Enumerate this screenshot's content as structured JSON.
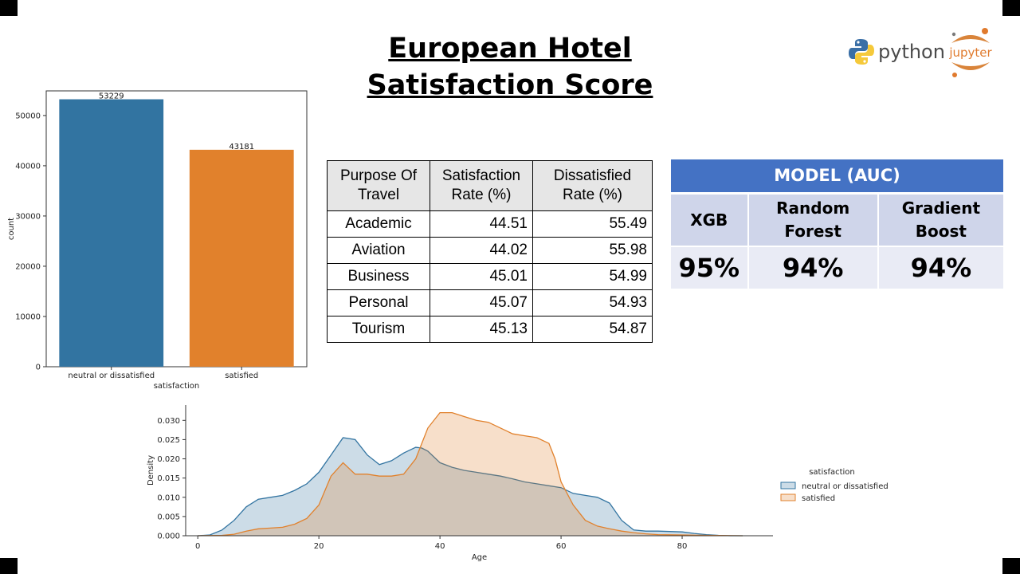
{
  "title": {
    "line1": "European Hotel",
    "line2": "Satisfaction Score"
  },
  "logos": {
    "python": "python",
    "jupyter": "jupyter"
  },
  "purpose_table": {
    "headers": [
      [
        "Purpose Of",
        "Travel"
      ],
      [
        "Satisfaction",
        "Rate (%)"
      ],
      [
        "Dissatisfied",
        "Rate (%)"
      ]
    ],
    "rows": [
      [
        "Academic",
        "44.51",
        "55.49"
      ],
      [
        "Aviation",
        "44.02",
        "55.98"
      ],
      [
        "Business",
        "45.01",
        "54.99"
      ],
      [
        "Personal",
        "45.07",
        "54.93"
      ],
      [
        "Tourism",
        "45.13",
        "54.87"
      ]
    ]
  },
  "model_table": {
    "title": "MODEL (AUC)",
    "models": [
      {
        "name": [
          "XGB"
        ],
        "auc": "95%"
      },
      {
        "name": [
          "Random",
          "Forest"
        ],
        "auc": "94%"
      },
      {
        "name": [
          "Gradient",
          "Boost"
        ],
        "auc": "94%"
      }
    ]
  },
  "chart_data": [
    {
      "type": "bar",
      "categories": [
        "neutral or dissatisfied",
        "satisfied"
      ],
      "values": [
        53229,
        43181
      ],
      "data_labels": [
        "53229",
        "43181"
      ],
      "colors": [
        "#3274a1",
        "#e1812c"
      ],
      "xlabel": "satisfaction",
      "ylabel": "count",
      "ylim": [
        0,
        54900
      ],
      "yticks": [
        0,
        10000,
        20000,
        30000,
        40000,
        50000
      ]
    },
    {
      "type": "area",
      "xlabel": "Age",
      "ylabel": "Density",
      "xlim": [
        -2,
        95
      ],
      "ylim": [
        0,
        0.034
      ],
      "xticks": [
        0,
        20,
        40,
        60,
        80
      ],
      "yticks": [
        "0.000",
        "0.005",
        "0.010",
        "0.015",
        "0.020",
        "0.025",
        "0.030"
      ],
      "legend": {
        "title": "satisfaction",
        "position": "right"
      },
      "series": [
        {
          "name": "neutral or dissatisfied",
          "color": "#3274a1",
          "x": [
            0,
            2,
            4,
            6,
            8,
            10,
            12,
            14,
            16,
            18,
            20,
            22,
            24,
            26,
            28,
            30,
            32,
            34,
            36,
            37,
            38,
            40,
            42,
            44,
            46,
            48,
            50,
            52,
            54,
            56,
            58,
            60,
            62,
            64,
            66,
            68,
            70,
            72,
            74,
            76,
            78,
            80,
            82,
            84,
            86,
            88,
            90
          ],
          "y": [
            0.0,
            0.0002,
            0.0015,
            0.004,
            0.0075,
            0.0095,
            0.01,
            0.0105,
            0.0118,
            0.0135,
            0.0165,
            0.021,
            0.0255,
            0.025,
            0.021,
            0.0185,
            0.0195,
            0.0215,
            0.023,
            0.0228,
            0.022,
            0.019,
            0.0178,
            0.017,
            0.0165,
            0.016,
            0.0155,
            0.0148,
            0.014,
            0.0135,
            0.013,
            0.0125,
            0.011,
            0.0105,
            0.01,
            0.0085,
            0.004,
            0.0015,
            0.0012,
            0.0012,
            0.0011,
            0.001,
            0.0006,
            0.0003,
            0.0001,
            0.0,
            0.0
          ]
        },
        {
          "name": "satisfied",
          "color": "#e1812c",
          "x": [
            0,
            4,
            6,
            8,
            10,
            12,
            14,
            16,
            18,
            20,
            22,
            24,
            26,
            28,
            30,
            32,
            34,
            36,
            38,
            40,
            42,
            44,
            46,
            48,
            50,
            52,
            54,
            56,
            58,
            59,
            60,
            62,
            64,
            66,
            68,
            70,
            72,
            74,
            76,
            80,
            84,
            90
          ],
          "y": [
            0.0,
            0.0001,
            0.0004,
            0.0012,
            0.0018,
            0.002,
            0.0022,
            0.003,
            0.0045,
            0.008,
            0.0155,
            0.019,
            0.016,
            0.016,
            0.0155,
            0.0155,
            0.016,
            0.02,
            0.028,
            0.032,
            0.032,
            0.031,
            0.03,
            0.0295,
            0.028,
            0.0265,
            0.026,
            0.0255,
            0.024,
            0.02,
            0.014,
            0.008,
            0.004,
            0.0025,
            0.0018,
            0.0012,
            0.0008,
            0.0005,
            0.0003,
            0.0002,
            0.0001,
            0.0
          ]
        }
      ]
    }
  ]
}
